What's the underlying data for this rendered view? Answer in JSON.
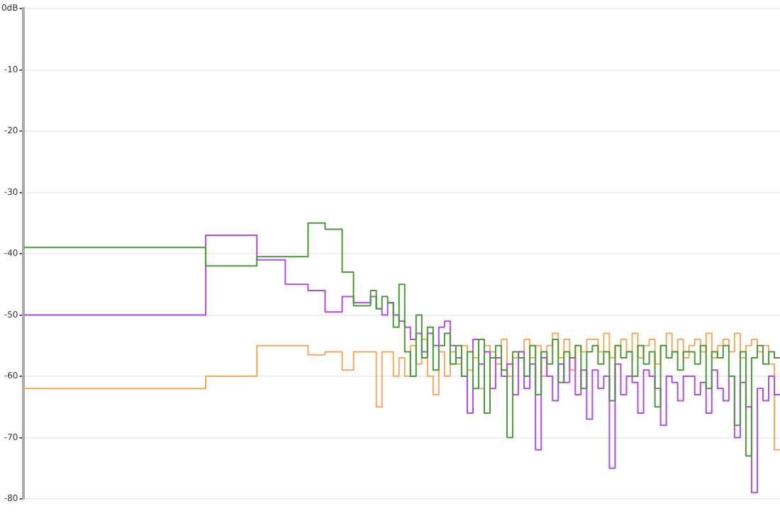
{
  "chart_data": {
    "type": "step",
    "categories": [
      null,
      null,
      null,
      null,
      null,
      null,
      null,
      null,
      null,
      null,
      null,
      null,
      null,
      null,
      null,
      null,
      null,
      null,
      null,
      null,
      null,
      null,
      null,
      null,
      null,
      null,
      null,
      null,
      null,
      null,
      null,
      null,
      null,
      null,
      null,
      null,
      null,
      null,
      null,
      null,
      null,
      null,
      null,
      null,
      null,
      null,
      null,
      null,
      null,
      null,
      null,
      null,
      null,
      null,
      null,
      null,
      null,
      null,
      null,
      null,
      null,
      null,
      null,
      null,
      null,
      null,
      null,
      null,
      null,
      null,
      null,
      null,
      null,
      null,
      null,
      null,
      null,
      null,
      null,
      null,
      null,
      null,
      null,
      null,
      null,
      null,
      null,
      null,
      null,
      null,
      null,
      null,
      null,
      null,
      null,
      null,
      null,
      null,
      null,
      null,
      null,
      null,
      null,
      null,
      null,
      null,
      null,
      null,
      null,
      null,
      null,
      null,
      null,
      null,
      null,
      null,
      null,
      null,
      null,
      null,
      null,
      null,
      null,
      null,
      null,
      null,
      null,
      null,
      null,
      null,
      null,
      null,
      null,
      null
    ],
    "ylim": [
      -80,
      0
    ],
    "yticks": [
      {
        "value": 0,
        "label": "0dB"
      },
      -10,
      -20,
      -30,
      -40,
      -50,
      -60,
      -70,
      -80
    ],
    "grid": "y",
    "legend": false,
    "tick_labels": "y",
    "marker": "none",
    "line_style": "solid",
    "series": [
      {
        "color": "#4a9a3a",
        "values": [
          -39,
          -39,
          -39,
          -39,
          -39,
          -39,
          -39,
          -39,
          -39,
          -39,
          -39,
          -39,
          -39,
          -39,
          -39,
          -39,
          -39,
          -39,
          -39,
          -39,
          -39,
          -39,
          -39,
          -39,
          -39,
          -39,
          -39,
          -39,
          -39,
          -39,
          -39,
          -39,
          -39,
          -42,
          -42,
          -42,
          -42,
          -42,
          -42,
          -42,
          -42,
          -42,
          -40.5,
          -40.5,
          -40.5,
          -40.5,
          -40.5,
          -40.5,
          -40.5,
          -40.5,
          -40.5,
          -35,
          -35,
          -35,
          -36,
          -36,
          -36,
          -43,
          -43,
          -48.5,
          -48.5,
          -48.5,
          -46,
          -49,
          -47,
          -48,
          -52,
          -45,
          -56,
          -60,
          -50,
          -57,
          -52,
          -59,
          -55,
          -53,
          -58,
          -55,
          -60,
          -56,
          -62,
          -54,
          -66,
          -57,
          -55,
          -59,
          -70,
          -56,
          -57,
          -60,
          -55,
          -63,
          -56,
          -58,
          -54,
          -61,
          -56,
          -57,
          -55,
          -62,
          -56,
          -55,
          -58,
          -56,
          -64,
          -55,
          -57,
          -56,
          -60,
          -55,
          -58,
          -56,
          -65,
          -55,
          -57,
          -56,
          -59,
          -56,
          -56,
          -58,
          -55,
          -62,
          -56,
          -57,
          -55,
          -60,
          -68,
          -56,
          -73,
          -57,
          -55,
          -58,
          -56,
          -57
        ]
      },
      {
        "color": "#b44ae8",
        "values": [
          -50,
          -50,
          -50,
          -50,
          -50,
          -50,
          -50,
          -50,
          -50,
          -50,
          -50,
          -50,
          -50,
          -50,
          -50,
          -50,
          -50,
          -50,
          -50,
          -50,
          -50,
          -50,
          -50,
          -50,
          -50,
          -50,
          -50,
          -50,
          -50,
          -50,
          -50,
          -50,
          -50,
          -37,
          -37,
          -37,
          -37,
          -37,
          -37,
          -37,
          -37,
          -37,
          -41,
          -41,
          -41,
          -41,
          -41,
          -45,
          -45,
          -45,
          -45,
          -46,
          -46,
          -46,
          -49.5,
          -49.5,
          -49.5,
          -47,
          -47,
          -48,
          -48,
          -48,
          -47,
          -49,
          -50,
          -48,
          -50,
          -51,
          -52,
          -54,
          -53,
          -56,
          -53,
          -55,
          -52,
          -51,
          -55,
          -57,
          -60,
          -66,
          -54,
          -58,
          -56,
          -62,
          -57,
          -60,
          -58,
          -63,
          -56,
          -62,
          -58,
          -72,
          -57,
          -60,
          -64,
          -58,
          -61,
          -57,
          -63,
          -59,
          -67,
          -59,
          -62,
          -60,
          -75,
          -58,
          -63,
          -60,
          -61,
          -66,
          -59,
          -60,
          -62,
          -68,
          -60,
          -61,
          -64,
          -60,
          -60,
          -63,
          -61,
          -66,
          -59,
          -62,
          -64,
          -60,
          -70,
          -61,
          -65,
          -79,
          -62,
          -64,
          -60,
          -63
        ]
      },
      {
        "color": "#f4a860",
        "values": [
          -62,
          -62,
          -62,
          -62,
          -62,
          -62,
          -62,
          -62,
          -62,
          -62,
          -62,
          -62,
          -62,
          -62,
          -62,
          -62,
          -62,
          -62,
          -62,
          -62,
          -62,
          -62,
          -62,
          -62,
          -62,
          -62,
          -62,
          -62,
          -62,
          -62,
          -62,
          -62,
          -62,
          -60,
          -60,
          -60,
          -60,
          -60,
          -60,
          -60,
          -60,
          -60,
          -55,
          -55,
          -55,
          -55,
          -55,
          -55,
          -55,
          -55,
          -55,
          -56.5,
          -56.5,
          -56.5,
          -56,
          -56,
          -56,
          -59,
          -59,
          -56,
          -56,
          -56,
          -56,
          -65,
          -56,
          -56,
          -60,
          -57,
          -60,
          -55,
          -58,
          -54,
          -60,
          -63,
          -56,
          -60,
          -56,
          -58,
          -55,
          -59,
          -57,
          -62,
          -55,
          -56,
          -58,
          -54,
          -60,
          -57,
          -56,
          -54,
          -57,
          -55,
          -60,
          -55,
          -53,
          -57,
          -54,
          -59,
          -55,
          -56,
          -54,
          -54,
          -56,
          -53,
          -57,
          -55,
          -54,
          -56,
          -53,
          -57,
          -55,
          -54,
          -58,
          -55,
          -53,
          -56,
          -54,
          -57,
          -55,
          -54,
          -56,
          -53,
          -57,
          -55,
          -54,
          -56,
          -53,
          -57,
          -55,
          -54,
          -56,
          -55,
          -58,
          -72
        ]
      }
    ]
  }
}
